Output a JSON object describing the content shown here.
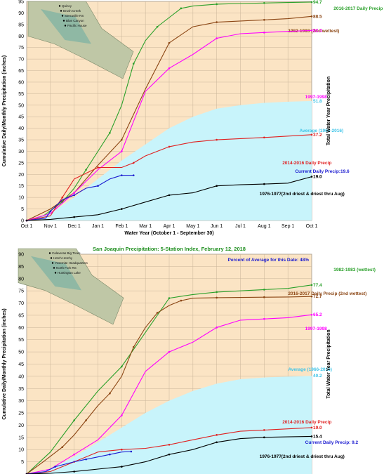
{
  "chart_data": [
    {
      "type": "line",
      "title": "",
      "xlabel": "Water Year (October 1 - September 30)",
      "ylabel": "Cumulative Daily/Monthly Precipitation (inches)",
      "y2label": "Total Water Year Precipitation",
      "ylim": [
        0,
        95
      ],
      "yticks": [
        0,
        5,
        10,
        15,
        20,
        25,
        30,
        35,
        40,
        45,
        50,
        55,
        60,
        65,
        70,
        75,
        80,
        85,
        90,
        95
      ],
      "x_ticks": [
        "Oct 1",
        "Nov 1",
        "Dec 1",
        "Jan 1",
        "Feb 1",
        "Mar 1",
        "Apr 1",
        "May 1",
        "Jun 1",
        "Jul 1",
        "Aug 1",
        "Sep 1",
        "Oct 1"
      ],
      "grid": true,
      "map_labels": [
        "Quincy",
        "Brush Creek",
        "Sierraville RS",
        "Blue Canyon",
        "Pacific House"
      ],
      "series": [
        {
          "name": "2016-2017 Daily Precip (wettest)",
          "color": "#2aa02a",
          "end_label": "94.7",
          "x": [
            0,
            0.7,
            1.5,
            2,
            2.5,
            3,
            3.5,
            4,
            4.5,
            5,
            5.5,
            6,
            6.5,
            7,
            8,
            9,
            10,
            11,
            12
          ],
          "y": [
            0,
            2,
            8,
            14,
            22,
            30,
            38,
            50,
            68,
            78,
            84,
            88,
            92,
            93,
            93.8,
            94.1,
            94.3,
            94.5,
            94.7
          ]
        },
        {
          "name": "1982-1983 (2nd wettest)",
          "color": "#8b4513",
          "end_label": "88.5",
          "x": [
            0,
            1,
            2,
            3,
            4,
            5,
            6,
            7,
            8,
            9,
            10,
            11,
            12
          ],
          "y": [
            0,
            5,
            12,
            24,
            35,
            57,
            77,
            84,
            86,
            86.5,
            87,
            87.5,
            88.5
          ]
        },
        {
          "name": "1997-1998",
          "color": "#ff00ff",
          "end_label": "82.4",
          "x": [
            0,
            1,
            2,
            3,
            4,
            5,
            6,
            7,
            8,
            9,
            10,
            11,
            12
          ],
          "y": [
            0,
            3,
            12,
            22,
            30,
            56,
            66,
            72,
            79,
            81,
            81.5,
            82,
            82.4
          ]
        },
        {
          "name": "Average (1966-2016)",
          "color": "#3ec4e8",
          "end_label": "51.8",
          "area": true,
          "x": [
            0,
            1,
            2,
            3,
            4,
            5,
            6,
            7,
            8,
            9,
            10,
            11,
            12
          ],
          "y": [
            0,
            3,
            10,
            18,
            26,
            33,
            40,
            45,
            48.5,
            50,
            51,
            51.5,
            51.8
          ]
        },
        {
          "name": "2014-2016 Daily Precip",
          "color": "#e02020",
          "end_label": "37.2",
          "x": [
            0,
            1,
            1.5,
            2,
            3,
            4,
            4.5,
            5,
            6,
            7,
            8,
            9,
            10,
            11,
            12
          ],
          "y": [
            0,
            2,
            10,
            18,
            23,
            23,
            25,
            28,
            32,
            34,
            35,
            35.5,
            36,
            36.6,
            37.2
          ]
        },
        {
          "name": "Current Daily Precip:19.6",
          "color": "#1a1ad0",
          "end_label": "",
          "x": [
            0,
            0.8,
            1,
            1.5,
            2,
            2.5,
            3,
            3.5,
            4,
            4.5
          ],
          "y": [
            0,
            1,
            4,
            9,
            11,
            14,
            15,
            18,
            19.6,
            19.6
          ]
        },
        {
          "name": "1976-1977(2nd driest & driest thru Aug)",
          "color": "#000000",
          "end_label": "19.0",
          "x": [
            0,
            1,
            2,
            3,
            4,
            5,
            6,
            7,
            8,
            9,
            10,
            11,
            12
          ],
          "y": [
            0,
            0.5,
            1.5,
            2.5,
            5,
            8,
            11,
            12,
            15,
            15.5,
            15.8,
            16.2,
            19
          ]
        }
      ]
    },
    {
      "type": "line",
      "title": "San Joaquin Precipitation: 5-Station Index, February 12, 2018",
      "note": "Percent of Average for this Date: 48%",
      "xlabel": "",
      "ylabel": "Cumulative Daily/Monthly Precipitation (inches)",
      "y2label": "Total Water Year Precipitation",
      "ylim": [
        0,
        90
      ],
      "yticks": [
        5,
        10,
        15,
        20,
        25,
        30,
        35,
        40,
        45,
        50,
        55,
        60,
        65,
        70,
        75,
        80,
        85,
        90
      ],
      "grid": true,
      "map_labels": [
        "Calaveras Big Trees",
        "Hetch Hetchy",
        "Yosemite Headquarters",
        "North Fork RS",
        "Huntington Lake"
      ],
      "series": [
        {
          "name": "1982-1983 (wettest)",
          "color": "#2aa02a",
          "end_label": "77.4",
          "x": [
            0,
            1,
            2,
            3,
            4,
            5,
            6,
            7,
            8,
            9,
            10,
            11,
            12
          ],
          "y": [
            0,
            9,
            22,
            34,
            44,
            58,
            72,
            73.5,
            74.5,
            75,
            75.5,
            76,
            77.4
          ]
        },
        {
          "name": "2016-2017 Daily Precip (2nd wettest)",
          "color": "#8b4513",
          "end_label": "72.7",
          "x": [
            0,
            0.7,
            1.5,
            2,
            2.5,
            3,
            3.5,
            4,
            4.5,
            5,
            5.5,
            6,
            6.5,
            7,
            8,
            9,
            10,
            11,
            12
          ],
          "y": [
            0,
            5,
            11,
            16,
            22,
            28,
            33,
            40,
            52,
            60,
            66,
            69,
            71,
            72,
            72.2,
            72.3,
            72.4,
            72.5,
            72.7
          ]
        },
        {
          "name": "1997-1998",
          "color": "#ff00ff",
          "end_label": "65.2",
          "x": [
            0,
            1,
            2,
            3,
            4,
            5,
            6,
            7,
            8,
            9,
            10,
            11,
            12
          ],
          "y": [
            0,
            2,
            8,
            14,
            24,
            42,
            50,
            54,
            60,
            63,
            63.5,
            64,
            65.2
          ]
        },
        {
          "name": "Average (1966-2016)",
          "color": "#3ec4e8",
          "end_label": "40.2",
          "area": true,
          "x": [
            0,
            1,
            2,
            3,
            4,
            5,
            6,
            7,
            8,
            9,
            10,
            11,
            12
          ],
          "y": [
            0,
            2,
            7,
            13,
            19,
            25,
            30,
            34,
            37,
            38.8,
            39.5,
            39.9,
            40.2
          ]
        },
        {
          "name": "2014-2016 Daily Precip",
          "color": "#e02020",
          "end_label": "19.0",
          "x": [
            0,
            1,
            2,
            3,
            4,
            5,
            6,
            7,
            8,
            9,
            10,
            11,
            12
          ],
          "y": [
            0,
            1,
            5,
            9,
            10,
            10.5,
            12,
            14,
            16,
            17.5,
            18,
            18.5,
            19
          ]
        },
        {
          "name": "Current Daily Precip: 9.2",
          "color": "#1a1ad0",
          "end_label": "",
          "x": [
            0,
            0.8,
            1.2,
            2,
            2.5,
            3,
            3.5,
            4,
            4.4
          ],
          "y": [
            0,
            1,
            3,
            5,
            6,
            7,
            8,
            9,
            9.2
          ]
        },
        {
          "name": "1976-1977(2nd driest & driest thru Aug)",
          "color": "#000000",
          "end_label": "15.4",
          "x": [
            0,
            1,
            2,
            3,
            4,
            5,
            6,
            7,
            8,
            9,
            10,
            11,
            12
          ],
          "y": [
            0,
            0.3,
            1,
            2,
            3,
            5,
            8,
            10,
            13,
            14.5,
            15,
            15.2,
            15.4
          ]
        }
      ]
    }
  ]
}
